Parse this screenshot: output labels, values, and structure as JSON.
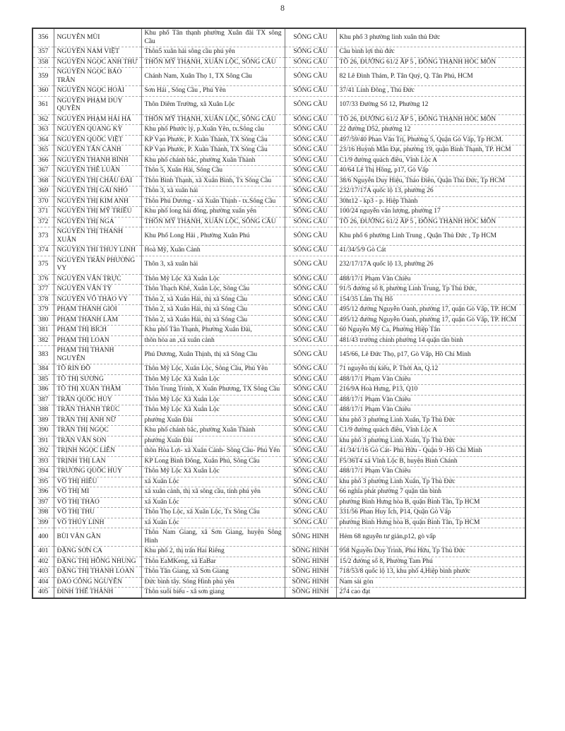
{
  "page": {
    "number": "8"
  },
  "table": {
    "columns": [
      "no",
      "name",
      "origin_address",
      "district",
      "destination_address"
    ],
    "rows": [
      [
        "356",
        "NGUYỄN MÙI",
        "Khu phố Tân thạnh phường Xuân đài TX sông Cầu",
        "SÔNG CẦU",
        "Khu phố 3 phường linh xuân thủ Đức"
      ],
      [
        "357",
        "NGUYỄN NAM VIỆT",
        "Thôn5 xuân hải sông cầu phú yên",
        "SÔNG CẦU",
        "Cầu bình lợi thủ đức"
      ],
      [
        "358",
        "NGUYỄN NGỌC ANH THƯ",
        "THÔN MỸ THẠNH, XUÂN LỘC, SÔNG CẦU",
        "SÔNG CẦU",
        "TỔ 26, ĐƯỜNG 61/2 ẤP 5 , ĐÔNG THẠNH HÓC MÔN"
      ],
      [
        "359",
        "NGUYỄN NGỌC BẢO TRÂN",
        "Chánh Nam, Xuân Thọ 1, TX Sông Cầu",
        "SÔNG CẦU",
        "82 Lê Đình Thám, P. Tân Quý, Q. Tân Phú, HCM"
      ],
      [
        "360",
        "NGUYỄN NGỌC HOÀI",
        "Sơn Hải , Sông Cầu , Phú Yên",
        "SÔNG CẦU",
        "37/41 Linh Đông , Thủ Đức"
      ],
      [
        "361",
        "NGUYỄN PHẠM DUY QUYỀN",
        "Thôn Diêm Trường, xã Xuân Lộc",
        "SÔNG CẦU",
        "107/33 Đường Số 12, Phường 12"
      ],
      [
        "362",
        "NGUYỄN PHẠM HẢI HÀ",
        "THÔN MỸ THẠNH, XUÂN LỘC, SÔNG CẦU",
        "SÔNG CẦU",
        "TỔ 26, ĐƯỜNG 61/2 ẤP 5 , ĐÔNG THẠNH HÓC MÔN"
      ],
      [
        "363",
        "NGUYỄN QUANG KỲ",
        "Khu phố Phước lý, p.Xuân Yên, tx.Sông cầu",
        "SÔNG CẦU",
        "22 đường D52, phường 12"
      ],
      [
        "364",
        "NGUYỄN QUỐC VIỆT",
        "KP Vạn Phước, P. Xuân Thành, TX Sông Cầu",
        "SÔNG CẦU",
        "497/59/40 Phan Văn Trị, Phường 5, Quận Gò Vấp, Tp HCM."
      ],
      [
        "365",
        "NGUYỄN TẤN CẢNH",
        "KP Vạn Phước, P. Xuân Thành, TX Sông Cầu",
        "SÔNG CẦU",
        "23/16 Huỳnh Mẫn Đạt, phường 19, quận Bình Thạnh, TP. HCM"
      ],
      [
        "366",
        "NGUYỄN THANH BÌNH",
        "Khu phố chánh bắc, phường Xuân Thành",
        "SÔNG CẦU",
        "C1/9 đường quách điều, Vĩnh Lộc A"
      ],
      [
        "367",
        "NGUYỄN THẾ LUÂN",
        "Thôn 5, Xuân Hải, Sông Cầu",
        "SÔNG CẦU",
        "40/64 Lê Thị Hồng, p17, Gò Vấp"
      ],
      [
        "368",
        "NGUYỄN THỊ CHÂU ĐÀI",
        "Thôn Bình Thạnh, xã Xuân Bình, Tx Sông Cầu",
        "SÔNG CẦU",
        "38/6 Nguyễn Duy Hiệu, Thảo Điền, Quận Thủ Đức, Tp HCM"
      ],
      [
        "369",
        "NGUYỄN THỊ GÁI NHỎ",
        "Thôn 3, xã xuân hải",
        "SÔNG CẦU",
        "232/17/17A quốc lộ 13, phường 26"
      ],
      [
        "370",
        "NGUYỄN THỊ KIM ANH",
        "Thôn Phú Dương - xã Xuân Thịnh - tx.Sông Cầu",
        "SÔNG CẦU",
        "30ht12 - kp3 - p. Hiệp Thành"
      ],
      [
        "371",
        "NGUYỄN THỊ MỸ TRIỀU",
        "Khu phố long hải đông, phường xuân yên",
        "SÔNG CẦU",
        "100/24 nguyễn văn lượng, phường 17"
      ],
      [
        "372",
        "NGUYỄN THỊ NGA",
        "THÔN MỸ THẠNH, XUÂN LỘC, SÔNG CẦU",
        "SÔNG CẦU",
        "TỔ 26, ĐƯỜNG 61/2 ẤP 5 , ĐÔNG THẠNH HÓC MÔN"
      ],
      [
        "373",
        "NGUYỄN THỊ THANH XUÂN",
        "Khu Phố Long Hải , Phường Xuân Phú",
        "SÔNG CẦU",
        "Khu phố 6 phường Linh Trung , Quận Thủ Đức , Tp HCM"
      ],
      [
        "374",
        "NGUYEN THI THUY LINH",
        "Hoà Mỹ, Xuân Cảnh",
        "SÔNG CẦU",
        "41/34/5/9 Gò Cát"
      ],
      [
        "375",
        "NGUYỄN TRẦN PHƯƠNG VY",
        "Thôn 3, xã xuân hải",
        "SÔNG CẦU",
        "232/17/17A quốc lộ 13, phường 26"
      ],
      [
        "376",
        "NGUYỄN VĂN TRỰC",
        "Thôn Mỹ Lộc Xã Xuân Lộc",
        "SÔNG CẦU",
        "488/17/1 Phạm Văn Chiêu"
      ],
      [
        "377",
        "NGUYỄN VĂN TÝ",
        "Thôn Thạch Khê, Xuân Lộc, Sông Cầu",
        "SÔNG CẦU",
        "91/5 đường số 8, phường Linh Trung, Tp Thủ Đức,"
      ],
      [
        "378",
        "NGUYỄN VÕ THẢO VY",
        "Thôn 2, xã Xuân Hải, thị xã Sông Cầu",
        "SÔNG CẦU",
        "154/35 Lâm Thị Hố"
      ],
      [
        "379",
        "PHẠM THÀNH GIỎI",
        "Thôn 2, xã Xuân Hải, thị xã Sông Cầu",
        "SÔNG CẦU",
        "495/12 đường Nguyễn Oanh, phường 17, quận Gò Vấp, TP. HCM"
      ],
      [
        "380",
        "PHẠM THÀNH LẮM",
        "Thôn 2, xã Xuân Hải, thị xã Sông Cầu",
        "SÔNG CẦU",
        "495/12 đường Nguyễn Oanh, phường 17, quận Gò Vấp, TP. HCM"
      ],
      [
        "381",
        "PHẠM THỊ BÍCH",
        "Khu phố Tân Thạnh, Phường Xuân Đài,",
        "SÔNG CẦU",
        "60 Nguyễn Mỹ Ca, Phường Hiệp Tân"
      ],
      [
        "382",
        "PHẠM THỊ LOAN",
        "thôn hòa an ,xã xuân cảnh",
        "SÔNG CẦU",
        "481/43 trường chinh phường 14 quận tân bình"
      ],
      [
        "383",
        "PHẠM THỊ THANH NGUYÊN",
        "Phú Dương, Xuân Thịnh, thị xã Sông Cầu",
        "SÔNG CẦU",
        "145/66, Lê Đức Thọ, p17, Gò Vấp, Hồ Chí Minh"
      ],
      [
        "384",
        "TÔ RIN ĐÔ",
        "Thôn Mỹ Lộc, Xuân Lộc, Sông Cầu, Phú Yên",
        "SÔNG CẦU",
        "71 nguyễn thị kiểu, P. Thới An, Q.12"
      ],
      [
        "385",
        "TÔ THỊ SƯƠNG",
        "Thôn Mỹ Lộc Xã Xuân Lộc",
        "SÔNG CẦU",
        "488/17/1 Phạm Văn Chiêu"
      ],
      [
        "386",
        "TÔ THỊ XUÂN THẮM",
        "Thôn Trung Trinh, X Xuân Phương, TX Sông Cầu",
        "SÔNG CẦU",
        "216/9A Hoà Hưng, P13, Q10"
      ],
      [
        "387",
        "TRẦN QUỐC HUY",
        "Thôn Mỹ Lộc Xã Xuân Lộc",
        "SÔNG CẦU",
        "488/17/1 Phạm Văn Chiêu"
      ],
      [
        "388",
        "TRẦN THANH TRÚC",
        "Thôn Mỹ Lộc Xã Xuân Lộc",
        "SÔNG CẦU",
        "488/17/1 Phạm Văn Chiêu"
      ],
      [
        "389",
        "TRẦN THỊ ÁNH NỮ",
        "phường Xuân Đài",
        "SÔNG CẦU",
        "khu phố 3 phường Linh Xuân, Tp Thủ Đức"
      ],
      [
        "390",
        "TRẦN THỊ NGỌC",
        "Khu phố chánh bắc, phường Xuân Thành",
        "SÔNG CẦU",
        "C1/9 đường quách điều, Vĩnh Lộc A"
      ],
      [
        "391",
        "TRẦN VĂN SON",
        "phường Xuân Đài",
        "SÔNG CẦU",
        "khu phố 3 phường Linh Xuân, Tp Thủ Đức"
      ],
      [
        "392",
        "TRỊNH NGỌC LIÊN",
        "thôn Hòa Lợi- xã Xuân Cảnh- Sông Cầu- Phú Yên",
        "SÔNG CẦU",
        "41/34/1/16 Gò Cát- Phú Hữu - Quận 9 -Hồ Chí Minh"
      ],
      [
        "393",
        "TRỊNH THỊ LAN",
        "KP Long Bình Đông, Xuân Phú, Sông Cầu",
        "SÔNG CẦU",
        "F5/36T4 xã Vĩnh Lộc B, huyện Bình Chánh"
      ],
      [
        "394",
        "TRƯƠNG QUỐC HUY",
        "Thôn Mỹ Lộc Xã Xuân Lộc",
        "SÔNG CẦU",
        "488/17/1 Phạm Văn Chiêu"
      ],
      [
        "395",
        "VÕ THỊ HIẾU",
        "xã Xuân Lộc",
        "SÔNG CẦU",
        "khu phố 3 phường Linh Xuân, Tp Thủ Đức"
      ],
      [
        "396",
        "VÕ THỊ MI",
        "xã xuân cảnh, thị xã sông cầu, tỉnh phú yên",
        "SÔNG CẦU",
        "66 nghĩa phát phường 7 quận tân bình"
      ],
      [
        "397",
        "VÕ THỊ THẢO",
        "xã Xuân Lộc",
        "SÔNG CẦU",
        "phường Bình Hưng hòa B, quận Bình Tân, Tp HCM"
      ],
      [
        "398",
        "VÕ THỊ THU",
        "Thôn Thọ Lộc, xã Xuân Lộc, Tx Sông Cầu",
        "SÔNG CẦU",
        "331/56 Phan Huy Ích, P14, Quận Gò Vấp"
      ],
      [
        "399",
        "VÕ THỦY LINH",
        "xã Xuân Lộc",
        "SÔNG CẦU",
        "phường Bình Hưng hòa B, quận Bình Tân, Tp HCM"
      ],
      [
        "400",
        "BÙI VĂN GẦN",
        "Thôn Nam Giang, xã Sơn Giang, huyện Sông Hinh",
        "SÔNG HINH",
        "Hẻm 68 nguyễn tư giản,p12, gò vấp"
      ],
      [
        "401",
        "ĐẶNG SƠN CA",
        "Khu phố 2, thị trấn Hai Riêng",
        "SÔNG HINH",
        "958 Nguyễn Duy Trinh, Phú Hữu, Tp Thủ Đức"
      ],
      [
        "402",
        "ĐẶNG THỊ HỒNG NHUNG",
        "Thôn EaMKeng, xã EaBar",
        "SÔNG HINH",
        "15/2 đường số 8, Phường Tam Phú"
      ],
      [
        "403",
        "ĐẶNG THỊ THANH LOAN",
        "Thôn Tân Giang, xã Sơn Giang",
        "SÔNG HINH",
        "718/53/8  quốc lộ 13, khu phố 4,Hiệp bình phước"
      ],
      [
        "404",
        "ĐÀO CÔNG NGUYÊN",
        "Đức bình tây. Sông Hinh phú yên",
        "SÔNG HINH",
        "Nam sài gòn"
      ],
      [
        "405",
        "ĐINH THẾ THÀNH",
        "Thôn suối biểu - xã sơn giang",
        "SÔNG HINH",
        "274 cao đạt"
      ]
    ]
  }
}
